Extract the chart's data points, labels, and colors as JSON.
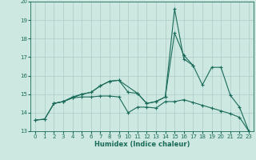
{
  "xlabel": "Humidex (Indice chaleur)",
  "background_color": "#cce8e0",
  "grid_color": "#aacccc",
  "line_color": "#1a6b5a",
  "xlim": [
    -0.5,
    23.5
  ],
  "ylim": [
    13,
    20
  ],
  "xticks": [
    0,
    1,
    2,
    3,
    4,
    5,
    6,
    7,
    8,
    9,
    10,
    11,
    12,
    13,
    14,
    15,
    16,
    17,
    18,
    19,
    20,
    21,
    22,
    23
  ],
  "yticks": [
    13,
    14,
    15,
    16,
    17,
    18,
    19,
    20
  ],
  "line1_x": [
    0,
    1,
    2,
    3,
    4,
    5,
    6,
    7,
    8,
    9,
    10,
    11,
    12,
    13,
    14,
    15,
    16,
    17,
    18,
    19,
    20,
    21,
    22,
    23
  ],
  "line1_y": [
    13.6,
    13.65,
    14.5,
    14.6,
    14.8,
    14.85,
    14.85,
    14.9,
    14.9,
    14.85,
    14.0,
    14.3,
    14.3,
    14.25,
    14.6,
    14.6,
    14.7,
    14.55,
    14.4,
    14.25,
    14.1,
    13.95,
    13.75,
    13.0
  ],
  "line2_x": [
    0,
    1,
    2,
    3,
    4,
    5,
    6,
    7,
    8,
    9,
    10,
    11,
    12,
    13,
    14,
    15,
    16,
    17,
    18,
    19,
    20,
    21,
    22,
    23
  ],
  "line2_y": [
    13.6,
    13.65,
    14.5,
    14.6,
    14.8,
    15.0,
    15.1,
    15.45,
    15.7,
    15.75,
    15.1,
    15.05,
    14.5,
    14.6,
    14.85,
    19.6,
    16.9,
    16.55,
    15.5,
    16.45,
    16.45,
    14.95,
    14.3,
    13.0
  ],
  "line3_x": [
    2,
    3,
    4,
    5,
    6,
    7,
    8,
    9,
    11,
    12,
    13,
    14,
    15,
    16,
    17
  ],
  "line3_y": [
    14.5,
    14.6,
    14.85,
    15.0,
    15.1,
    15.45,
    15.7,
    15.75,
    15.05,
    14.5,
    14.6,
    14.85,
    18.3,
    17.1,
    16.55
  ]
}
